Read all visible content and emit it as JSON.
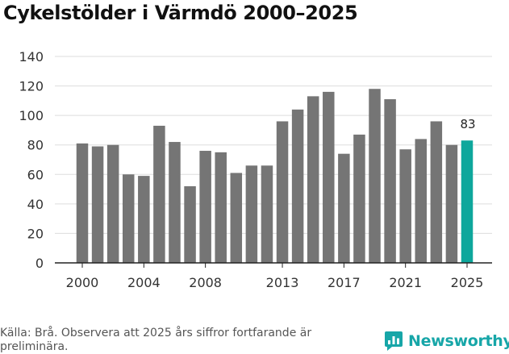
{
  "title": "Cykelstölder i Värmdö 2000–2025",
  "source": "Källa: Brå. Observera att 2025 års siffror fortfarande är preliminära.",
  "brand": {
    "name": "Newsworthy",
    "color": "#17a6a8"
  },
  "colors": {
    "bar": "#757575",
    "highlight": "#0ea79c",
    "grid": "#dddddd",
    "axis": "#222222",
    "text": "#333333"
  },
  "chart_data": {
    "type": "bar",
    "title": "Cykelstölder i Värmdö 2000–2025",
    "xlabel": "",
    "ylabel": "",
    "ylim": [
      0,
      140
    ],
    "yticks": [
      0,
      20,
      40,
      60,
      80,
      100,
      120,
      140
    ],
    "grid": true,
    "categories": [
      "2000",
      "2001",
      "2002",
      "2003",
      "2004",
      "2005",
      "2006",
      "2007",
      "2008",
      "2009",
      "2010",
      "2011",
      "2012",
      "2013",
      "2014",
      "2015",
      "2016",
      "2017",
      "2018",
      "2019",
      "2020",
      "2021",
      "2022",
      "2023",
      "2024",
      "2025"
    ],
    "values": [
      81,
      79,
      80,
      60,
      59,
      93,
      82,
      52,
      76,
      75,
      61,
      66,
      66,
      96,
      104,
      113,
      116,
      74,
      87,
      118,
      111,
      77,
      84,
      96,
      80,
      83
    ],
    "xtick_labels": [
      "2000",
      "2004",
      "2008",
      "2013",
      "2017",
      "2021",
      "2025"
    ],
    "highlight_category": "2025",
    "annotation": {
      "category": "2025",
      "text": "83"
    }
  }
}
